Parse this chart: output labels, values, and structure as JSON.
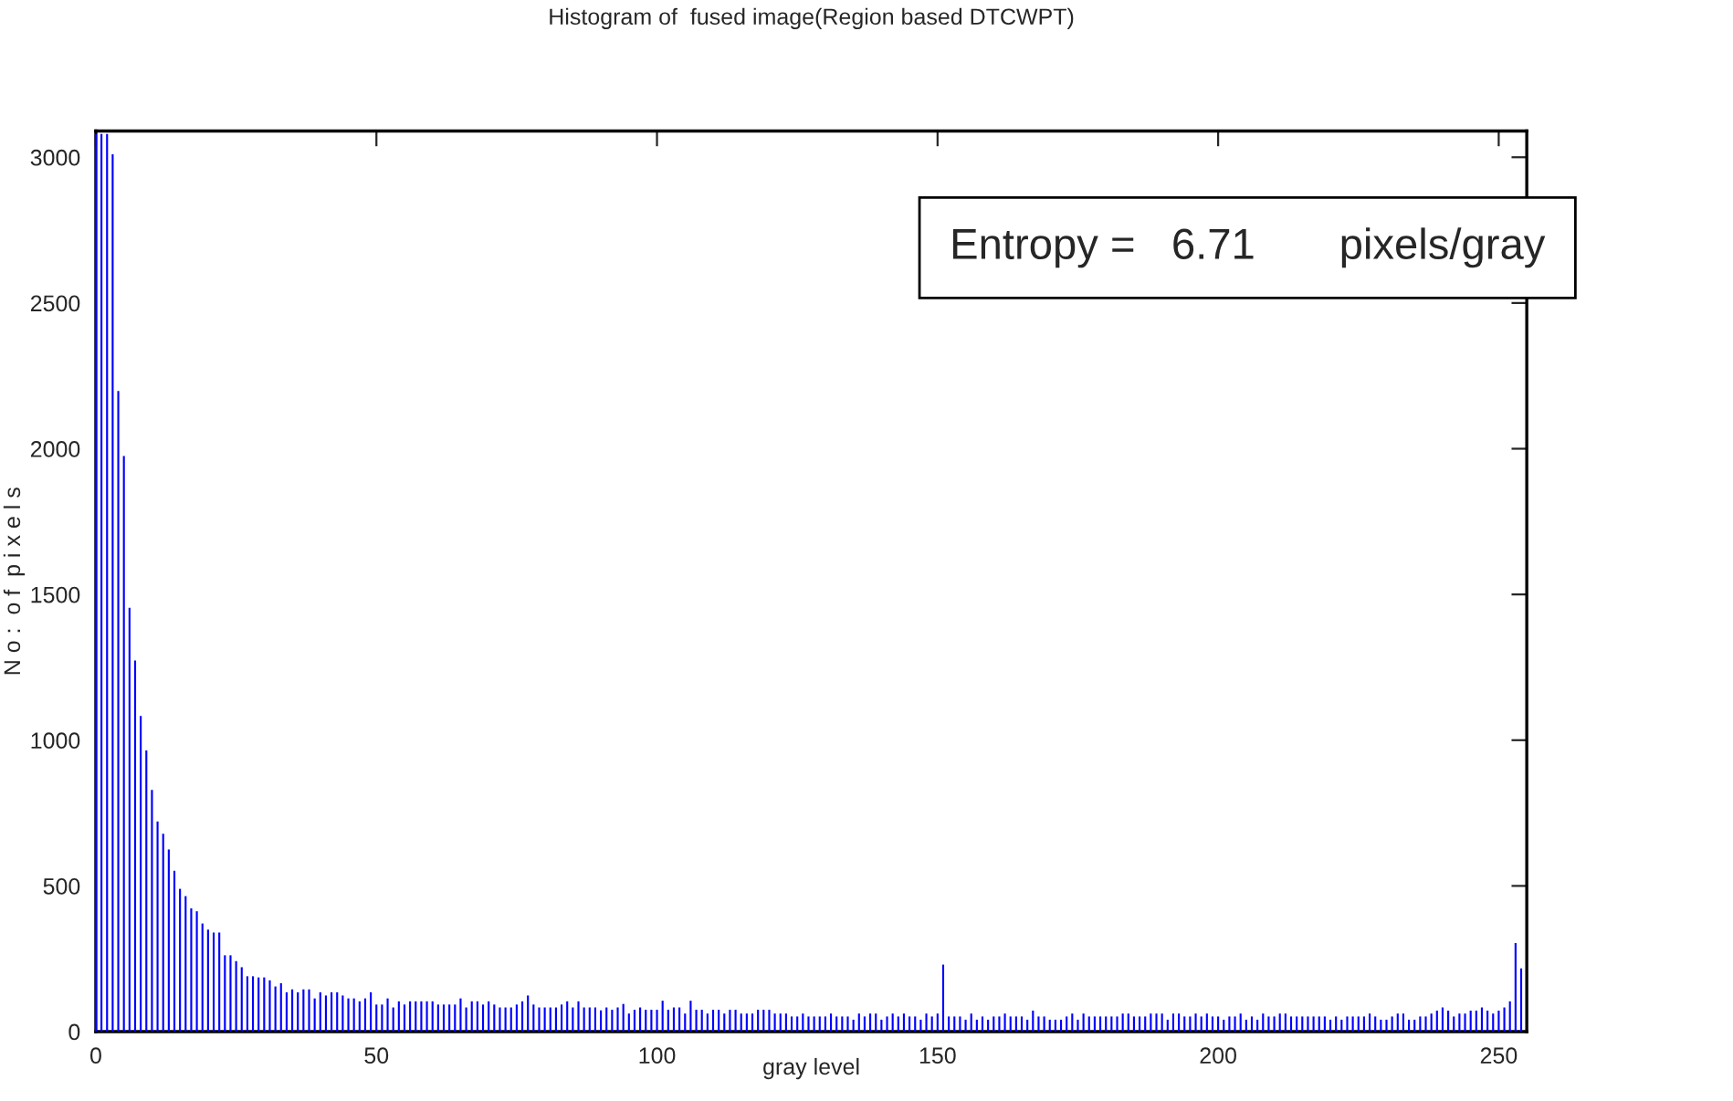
{
  "chart_data": {
    "type": "bar",
    "title": "Histogram of  fused image(Region based DTCWPT)",
    "xlabel": "gray level",
    "ylabel": "N o :  o f  p i x e l s",
    "annotations": [
      "Entropy =   6.71       pixels/gray"
    ],
    "x": [
      0,
      1,
      2,
      3,
      4,
      5,
      6,
      7,
      8,
      9,
      10,
      11,
      12,
      13,
      14,
      15,
      16,
      17,
      18,
      19,
      20,
      21,
      22,
      23,
      24,
      25,
      26,
      27,
      28,
      29,
      30,
      31,
      32,
      33,
      34,
      35,
      36,
      37,
      38,
      39,
      40,
      41,
      42,
      43,
      44,
      45,
      46,
      47,
      48,
      49,
      50,
      51,
      52,
      53,
      54,
      55,
      56,
      57,
      58,
      59,
      60,
      61,
      62,
      63,
      64,
      65,
      66,
      67,
      68,
      69,
      70,
      71,
      72,
      73,
      74,
      75,
      76,
      77,
      78,
      79,
      80,
      81,
      82,
      83,
      84,
      85,
      86,
      87,
      88,
      89,
      90,
      91,
      92,
      93,
      94,
      95,
      96,
      97,
      98,
      99,
      100,
      101,
      102,
      103,
      104,
      105,
      106,
      107,
      108,
      109,
      110,
      111,
      112,
      113,
      114,
      115,
      116,
      117,
      118,
      119,
      120,
      121,
      122,
      123,
      124,
      125,
      126,
      127,
      128,
      129,
      130,
      131,
      132,
      133,
      134,
      135,
      136,
      137,
      138,
      139,
      140,
      141,
      142,
      143,
      144,
      145,
      146,
      147,
      148,
      149,
      150,
      151,
      152,
      153,
      154,
      155,
      156,
      157,
      158,
      159,
      160,
      161,
      162,
      163,
      164,
      165,
      166,
      167,
      168,
      169,
      170,
      171,
      172,
      173,
      174,
      175,
      176,
      177,
      178,
      179,
      180,
      181,
      182,
      183,
      184,
      185,
      186,
      187,
      188,
      189,
      190,
      191,
      192,
      193,
      194,
      195,
      196,
      197,
      198,
      199,
      200,
      201,
      202,
      203,
      204,
      205,
      206,
      207,
      208,
      209,
      210,
      211,
      212,
      213,
      214,
      215,
      216,
      217,
      218,
      219,
      220,
      221,
      222,
      223,
      224,
      225,
      226,
      227,
      228,
      229,
      230,
      231,
      232,
      233,
      234,
      235,
      236,
      237,
      238,
      239,
      240,
      241,
      242,
      243,
      244,
      245,
      246,
      247,
      248,
      249,
      250,
      251,
      252,
      253,
      254
    ],
    "series": [
      {
        "color": "#0000ff",
        "values": [
          3080,
          3080,
          3080,
          3010,
          2198,
          1975,
          1454,
          1273,
          1083,
          965,
          829,
          721,
          679,
          625,
          552,
          490,
          465,
          423,
          413,
          371,
          350,
          340,
          340,
          262,
          262,
          242,
          221,
          190,
          190,
          186,
          186,
          176,
          155,
          166,
          135,
          145,
          135,
          145,
          145,
          114,
          135,
          124,
          135,
          135,
          124,
          114,
          114,
          104,
          114,
          135,
          93,
          93,
          114,
          83,
          104,
          93,
          104,
          104,
          104,
          104,
          104,
          93,
          93,
          93,
          93,
          114,
          83,
          104,
          104,
          93,
          104,
          93,
          83,
          83,
          83,
          93,
          104,
          124,
          93,
          83,
          83,
          83,
          83,
          93,
          104,
          83,
          104,
          83,
          83,
          83,
          73,
          83,
          75,
          83,
          95,
          62,
          75,
          83,
          75,
          75,
          75,
          106,
          75,
          83,
          83,
          62,
          106,
          75,
          75,
          62,
          75,
          75,
          62,
          75,
          75,
          62,
          62,
          62,
          75,
          75,
          75,
          62,
          62,
          62,
          52,
          52,
          62,
          52,
          52,
          52,
          52,
          62,
          52,
          52,
          52,
          41,
          62,
          52,
          62,
          62,
          41,
          52,
          62,
          52,
          62,
          52,
          52,
          41,
          62,
          52,
          62,
          230,
          52,
          52,
          52,
          41,
          62,
          41,
          52,
          41,
          52,
          52,
          62,
          52,
          52,
          52,
          41,
          72,
          52,
          52,
          41,
          41,
          41,
          52,
          62,
          41,
          62,
          52,
          52,
          52,
          52,
          52,
          52,
          62,
          62,
          52,
          52,
          52,
          62,
          62,
          62,
          41,
          62,
          62,
          52,
          52,
          62,
          52,
          62,
          52,
          52,
          41,
          52,
          52,
          62,
          41,
          52,
          41,
          62,
          52,
          52,
          62,
          62,
          52,
          52,
          52,
          52,
          52,
          52,
          52,
          41,
          52,
          41,
          52,
          52,
          52,
          52,
          62,
          52,
          41,
          41,
          52,
          62,
          62,
          41,
          41,
          52,
          52,
          62,
          72,
          83,
          72,
          52,
          62,
          62,
          72,
          72,
          83,
          72,
          62,
          72,
          83,
          104,
          304,
          217
        ]
      }
    ],
    "xlim": [
      0,
      255
    ],
    "xticks": [
      0,
      50,
      100,
      150,
      200,
      250
    ],
    "ylim": [
      0,
      3090
    ],
    "yticks": [
      0,
      500,
      1000,
      1500,
      2000,
      2500,
      3000
    ],
    "grid": false
  }
}
